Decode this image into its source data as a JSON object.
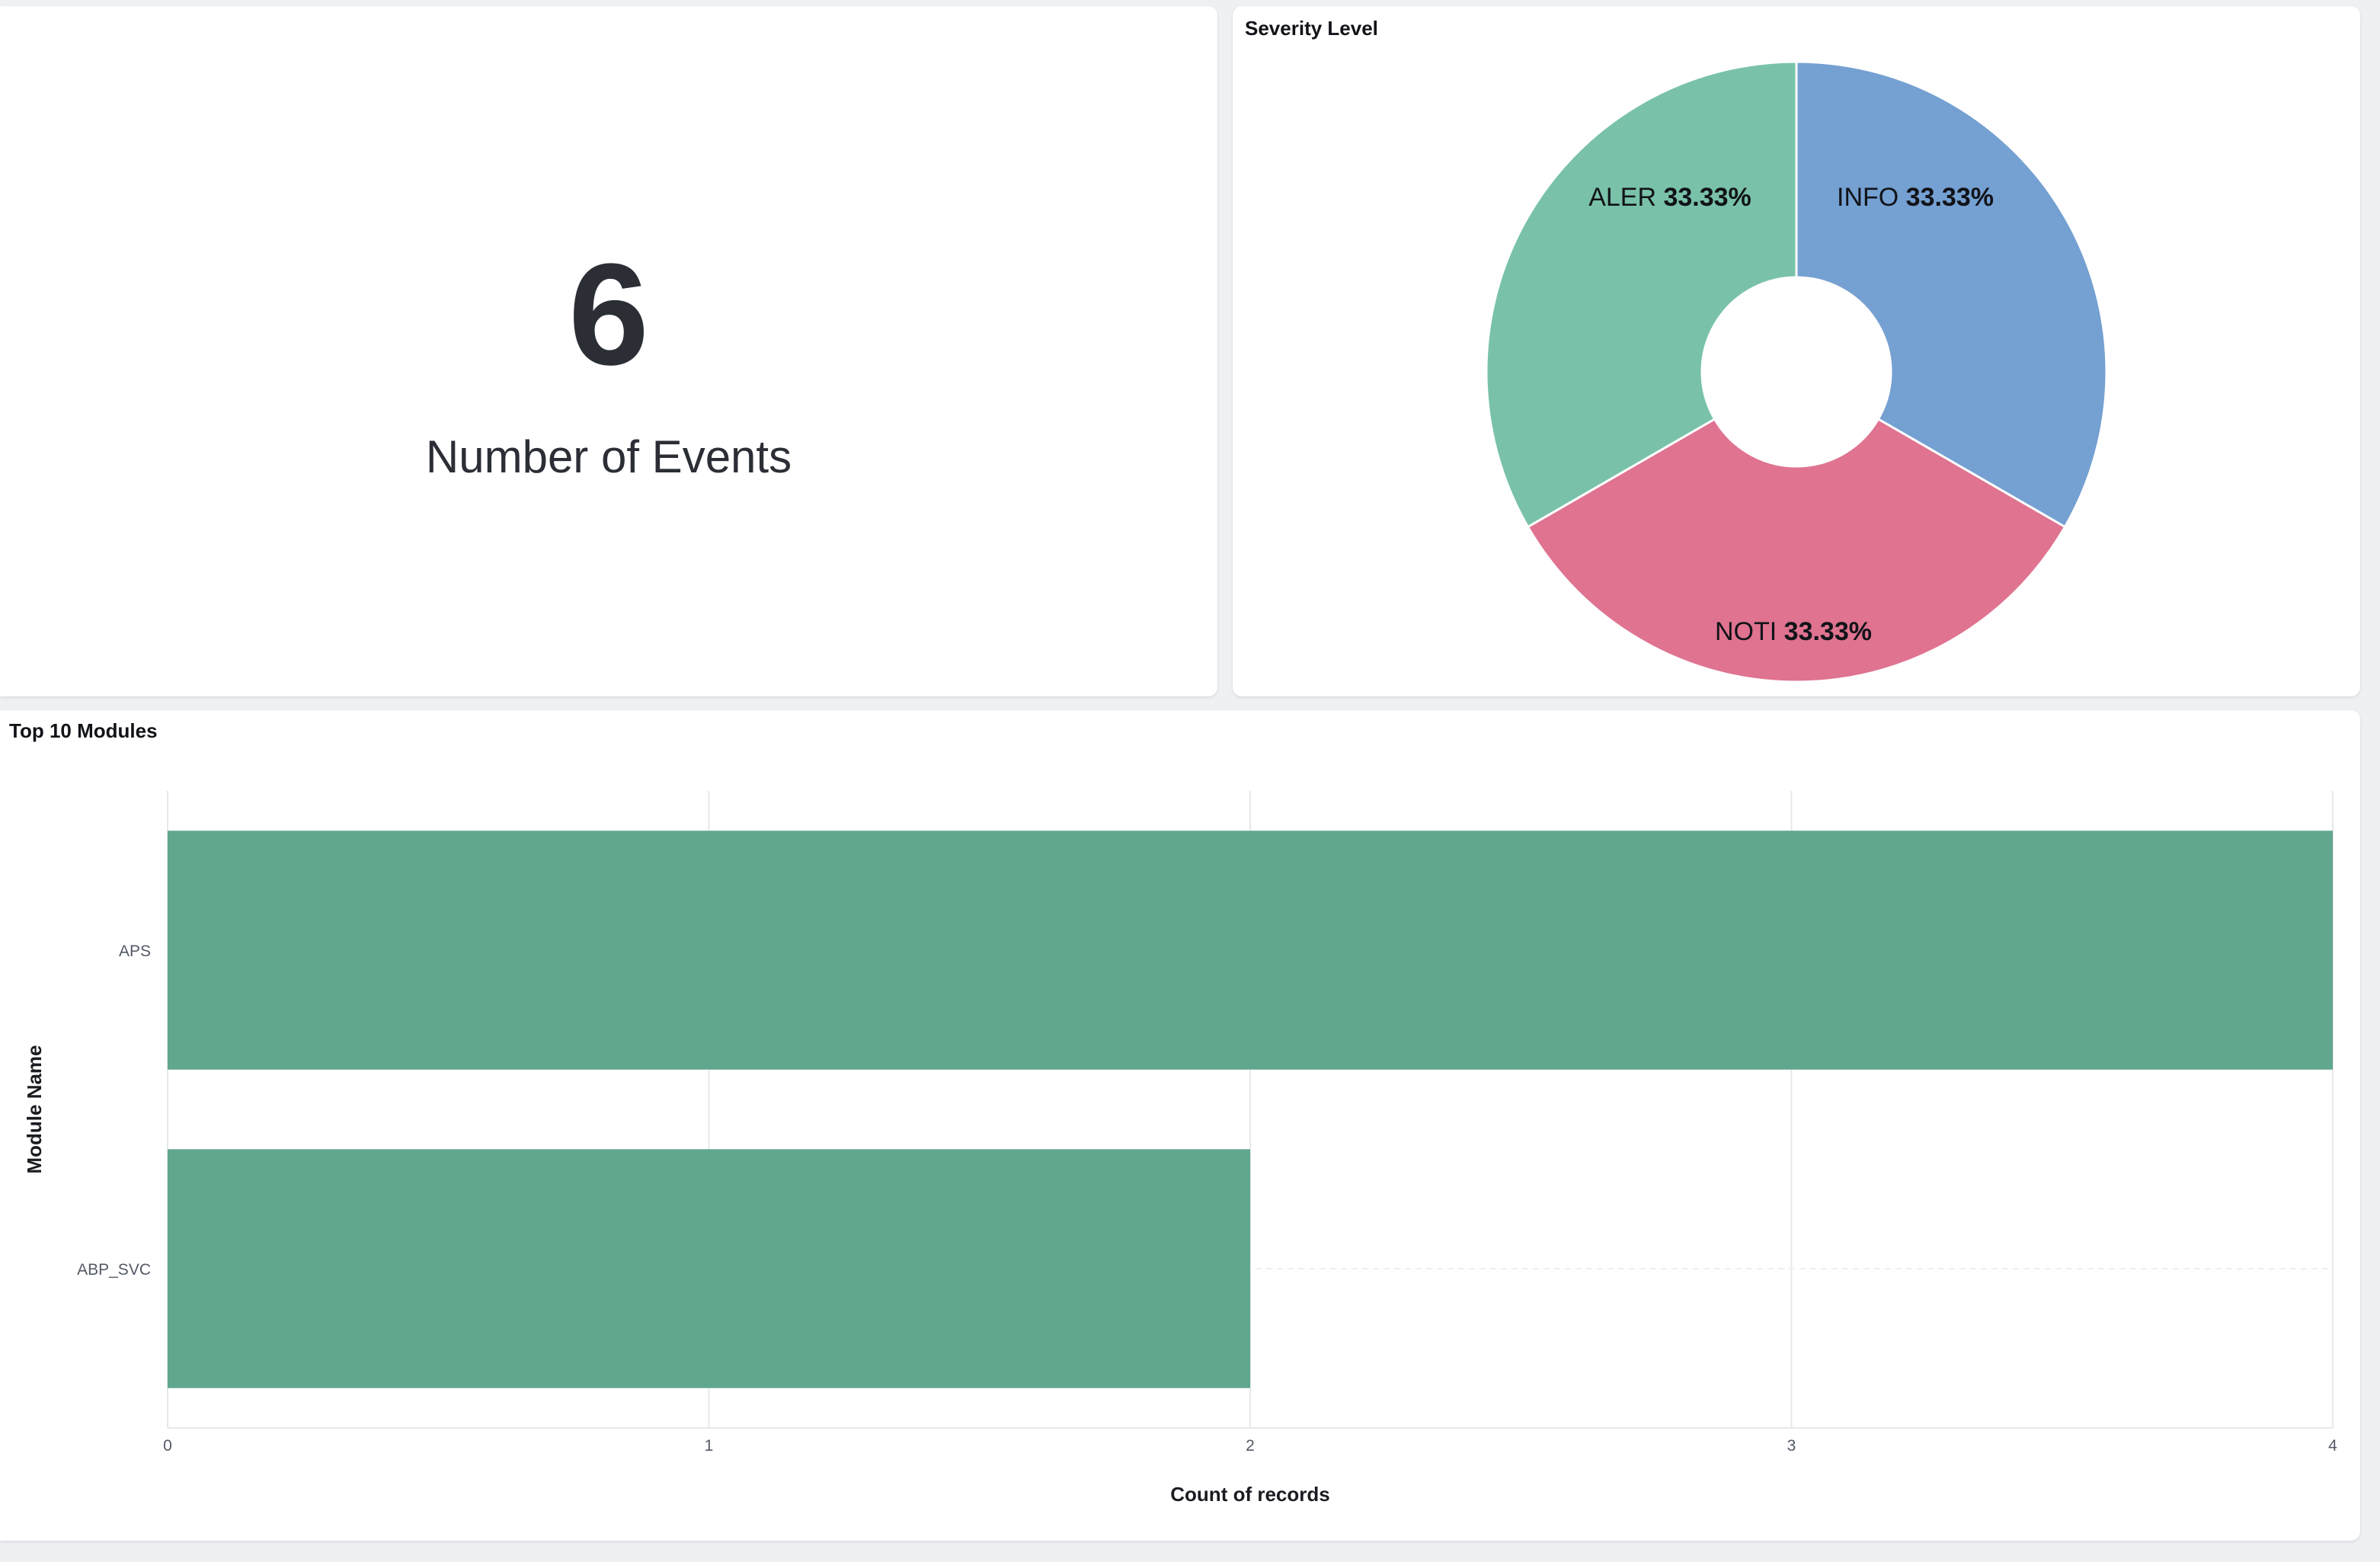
{
  "metric": {
    "value": "6",
    "label": "Number of Events"
  },
  "severity": {
    "title": "Severity Level",
    "slices": [
      {
        "name": "INFO",
        "percent_text": "33.33%",
        "value": 33.33,
        "color": "#75a0d2"
      },
      {
        "name": "NOTI",
        "percent_text": "33.33%",
        "value": 33.33,
        "color": "#df7390"
      },
      {
        "name": "ALER",
        "percent_text": "33.33%",
        "value": 33.33,
        "color": "#79c2a9"
      }
    ]
  },
  "modules": {
    "title": "Top 10 Modules"
  },
  "chart_data": {
    "type": "bar",
    "orientation": "horizontal",
    "title": "Top 10 Modules",
    "categories": [
      "APS",
      "ABP_SVC"
    ],
    "values": [
      4,
      2
    ],
    "xlabel": "Count of records",
    "ylabel": "Module Name",
    "xlim": [
      0,
      4
    ],
    "xticks": [
      "0",
      "1",
      "2",
      "3",
      "4"
    ],
    "grid": true,
    "bar_color": "#60a78e"
  }
}
